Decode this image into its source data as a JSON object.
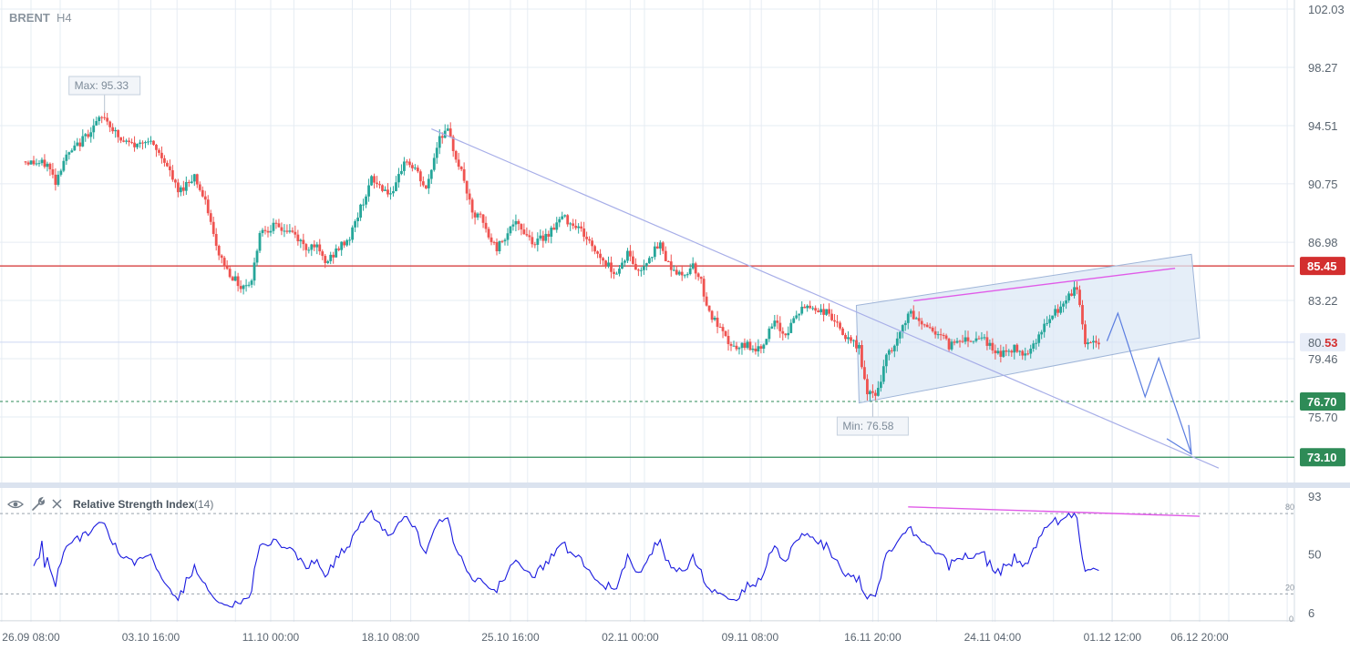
{
  "header": {
    "symbol": "BRENT",
    "timeframe": "H4"
  },
  "price_axis": {
    "ticks": [
      "102.03",
      "98.27",
      "94.51",
      "90.75",
      "86.98",
      "83.22",
      "79.46",
      "75.70"
    ]
  },
  "current_price": {
    "main": "80.",
    "highlight": "53"
  },
  "levels": {
    "red": {
      "label": "85.45",
      "value": 85.45,
      "color": "#d32f2f"
    },
    "dotted_green": {
      "label": "76.70",
      "value": 76.7,
      "color": "#2e8b57"
    },
    "green": {
      "label": "73.10",
      "value": 73.1,
      "color": "#2e8b57"
    }
  },
  "callouts": {
    "max": "Max: 95.33",
    "min": "Min: 76.58"
  },
  "time_axis": {
    "labels": [
      "26.09 08:00",
      "03.10 16:00",
      "11.10 00:00",
      "18.10 08:00",
      "25.10 16:00",
      "02.11 00:00",
      "09.11 08:00",
      "16.11 20:00",
      "24.11 04:00",
      "01.12 12:00",
      "06.12 20:00"
    ]
  },
  "indicator": {
    "title": "Relative Strength Index",
    "params": "(14)",
    "icons": [
      "eye-icon",
      "wrench-icon",
      "close-icon"
    ],
    "axis_ticks": [
      "93",
      "50",
      "6"
    ],
    "levels": [
      "80",
      "20",
      "0"
    ]
  },
  "colors": {
    "up": "#26a69a",
    "down": "#ef5350",
    "rsi": "#1a1adf",
    "trend": "#a7aee8",
    "magenta": "#e05be8",
    "channel_fill": "#dce8f6",
    "forecast": "#5a7de0"
  },
  "chart_data": {
    "type": "candlestick",
    "title": "BRENT H4",
    "ylim": [
      72.0,
      102.5
    ],
    "anchors": [
      [
        "26.09 00:00",
        92.2
      ],
      [
        "27.09 12:00",
        92.0
      ],
      [
        "28.09 00:00",
        90.9
      ],
      [
        "28.09 12:00",
        92.3
      ],
      [
        "29.09 12:00",
        93.4
      ],
      [
        "30.09 12:00",
        94.7
      ],
      [
        "01.10 00:00",
        95.1
      ],
      [
        "02.10 00:00",
        93.5
      ],
      [
        "03.10 00:00",
        93.2
      ],
      [
        "03.10 12:00",
        93.7
      ],
      [
        "04.10 16:00",
        92.3
      ],
      [
        "05.10 12:00",
        90.2
      ],
      [
        "06.10 12:00",
        91.3
      ],
      [
        "07.10 08:00",
        89.0
      ],
      [
        "07.10 20:00",
        86.6
      ],
      [
        "08.10 12:00",
        85.2
      ],
      [
        "09.10 08:00",
        84.1
      ],
      [
        "10.10 00:00",
        84.5
      ],
      [
        "10.10 12:00",
        87.7
      ],
      [
        "11.10 08:00",
        88.0
      ],
      [
        "12.10 12:00",
        87.6
      ],
      [
        "13.10 08:00",
        86.6
      ],
      [
        "13.10 20:00",
        86.9
      ],
      [
        "14.10 12:00",
        85.6
      ],
      [
        "15.10 08:00",
        86.6
      ],
      [
        "16.10 00:00",
        87.3
      ],
      [
        "16.10 16:00",
        89.2
      ],
      [
        "17.10 08:00",
        91.0
      ],
      [
        "18.10 00:00",
        90.5
      ],
      [
        "18.10 16:00",
        90.0
      ],
      [
        "19.10 08:00",
        92.3
      ],
      [
        "20.10 00:00",
        91.7
      ],
      [
        "20.10 16:00",
        90.3
      ],
      [
        "21.10 12:00",
        93.9
      ],
      [
        "22.10 00:00",
        94.1
      ],
      [
        "22.10 12:00",
        92.5
      ],
      [
        "23.10 00:00",
        91.0
      ],
      [
        "23.10 12:00",
        88.7
      ],
      [
        "24.10 00:00",
        88.6
      ],
      [
        "24.10 12:00",
        87.3
      ],
      [
        "25.10 00:00",
        86.6
      ],
      [
        "26.10 00:00",
        88.2
      ],
      [
        "26.10 16:00",
        87.7
      ],
      [
        "27.10 08:00",
        86.9
      ],
      [
        "28.10 04:00",
        87.6
      ],
      [
        "29.10 00:00",
        88.6
      ],
      [
        "30.10 00:00",
        88.0
      ],
      [
        "30.10 20:00",
        86.7
      ],
      [
        "31.10 16:00",
        85.6
      ],
      [
        "01.11 08:00",
        85.0
      ],
      [
        "02.11 00:00",
        86.3
      ],
      [
        "02.11 16:00",
        85.0
      ],
      [
        "03.11 08:00",
        86.1
      ],
      [
        "04.11 00:00",
        86.8
      ],
      [
        "04.11 12:00",
        85.6
      ],
      [
        "05.11 08:00",
        84.7
      ],
      [
        "06.11 00:00",
        85.6
      ],
      [
        "06.11 12:00",
        84.4
      ],
      [
        "07.11 00:00",
        82.4
      ],
      [
        "07.11 12:00",
        81.6
      ],
      [
        "08.11 00:00",
        80.7
      ],
      [
        "08.11 16:00",
        80.0
      ],
      [
        "09.11 08:00",
        80.4
      ],
      [
        "10.11 00:00",
        80.0
      ],
      [
        "10.11 12:00",
        80.9
      ],
      [
        "11.11 00:00",
        81.7
      ],
      [
        "11.11 16:00",
        81.0
      ],
      [
        "12.11 08:00",
        82.3
      ],
      [
        "13.11 00:00",
        82.9
      ],
      [
        "13.11 16:00",
        82.6
      ],
      [
        "14.11 08:00",
        82.4
      ],
      [
        "15.11 00:00",
        81.3
      ],
      [
        "15.11 12:00",
        80.6
      ],
      [
        "16.11 04:00",
        80.2
      ],
      [
        "16.11 16:00",
        77.0
      ],
      [
        "17.11 08:00",
        77.4
      ],
      [
        "17.11 20:00",
        79.5
      ],
      [
        "18.11 12:00",
        80.6
      ],
      [
        "19.11 04:00",
        82.4
      ],
      [
        "19.11 20:00",
        81.9
      ],
      [
        "20.11 12:00",
        81.4
      ],
      [
        "21.11 04:00",
        81.0
      ],
      [
        "21.11 16:00",
        80.3
      ],
      [
        "22.11 08:00",
        80.8
      ],
      [
        "23.11 00:00",
        80.7
      ],
      [
        "23.11 16:00",
        81.0
      ],
      [
        "24.11 08:00",
        80.0
      ],
      [
        "25.11 00:00",
        79.8
      ],
      [
        "25.11 16:00",
        80.1
      ],
      [
        "26.11 08:00",
        79.8
      ],
      [
        "27.11 00:00",
        80.7
      ],
      [
        "27.11 16:00",
        81.8
      ],
      [
        "28.11 08:00",
        82.6
      ],
      [
        "29.11 00:00",
        83.4
      ],
      [
        "29.11 12:00",
        84.1
      ],
      [
        "30.11 00:00",
        80.5
      ],
      [
        "30.11 16:00",
        80.5
      ]
    ],
    "max": {
      "value": 95.33,
      "label": "Max: 95.33"
    },
    "min": {
      "value": 76.58,
      "label": "Min: 76.58"
    },
    "horizontal_levels": [
      85.45,
      76.7,
      73.1
    ],
    "current": 80.53
  }
}
